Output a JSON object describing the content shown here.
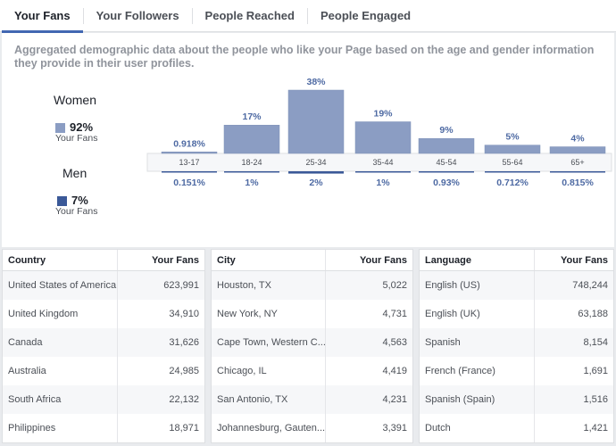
{
  "tabs": [
    {
      "label": "Your Fans",
      "active": true
    },
    {
      "label": "Your Followers",
      "active": false
    },
    {
      "label": "People Reached",
      "active": false
    },
    {
      "label": "People Engaged",
      "active": false
    }
  ],
  "description": "Aggregated demographic data about the people who like your Page based on the age and gender information they provide in their user profiles.",
  "legend": {
    "women": {
      "title": "Women",
      "pct": "92%",
      "sub": "Your Fans",
      "color": "#8b9dc3"
    },
    "men": {
      "title": "Men",
      "pct": "7%",
      "sub": "Your Fans",
      "color": "#3b5998"
    }
  },
  "chart_data": {
    "type": "bar",
    "categories": [
      "13-17",
      "18-24",
      "25-34",
      "35-44",
      "45-54",
      "55-64",
      "65+"
    ],
    "series": [
      {
        "name": "Women",
        "values": [
          0.918,
          17,
          38,
          19,
          9,
          5,
          4
        ],
        "labels": [
          "0.918%",
          "17%",
          "38%",
          "19%",
          "9%",
          "5%",
          "4%"
        ],
        "color": "#8b9dc3"
      },
      {
        "name": "Men",
        "values": [
          0.151,
          1,
          2,
          1,
          0.93,
          0.712,
          0.815
        ],
        "labels": [
          "0.151%",
          "1%",
          "2%",
          "1%",
          "0.93%",
          "0.712%",
          "0.815%"
        ],
        "color": "#3b5998"
      }
    ]
  },
  "tables": [
    {
      "col1": "Country",
      "col2": "Your Fans",
      "rows": [
        {
          "name": "United States of America",
          "value": "623,991"
        },
        {
          "name": "United Kingdom",
          "value": "34,910"
        },
        {
          "name": "Canada",
          "value": "31,626"
        },
        {
          "name": "Australia",
          "value": "24,985"
        },
        {
          "name": "South Africa",
          "value": "22,132"
        },
        {
          "name": "Philippines",
          "value": "18,971"
        }
      ]
    },
    {
      "col1": "City",
      "col2": "Your Fans",
      "rows": [
        {
          "name": "Houston, TX",
          "value": "5,022"
        },
        {
          "name": "New York, NY",
          "value": "4,731"
        },
        {
          "name": "Cape Town, Western C...",
          "value": "4,563"
        },
        {
          "name": "Chicago, IL",
          "value": "4,419"
        },
        {
          "name": "San Antonio, TX",
          "value": "4,231"
        },
        {
          "name": "Johannesburg, Gauten...",
          "value": "3,391"
        }
      ]
    },
    {
      "col1": "Language",
      "col2": "Your Fans",
      "rows": [
        {
          "name": "English (US)",
          "value": "748,244"
        },
        {
          "name": "English (UK)",
          "value": "63,188"
        },
        {
          "name": "Spanish",
          "value": "8,154"
        },
        {
          "name": "French (France)",
          "value": "1,691"
        },
        {
          "name": "Spanish (Spain)",
          "value": "1,516"
        },
        {
          "name": "Dutch",
          "value": "1,421"
        }
      ]
    }
  ]
}
